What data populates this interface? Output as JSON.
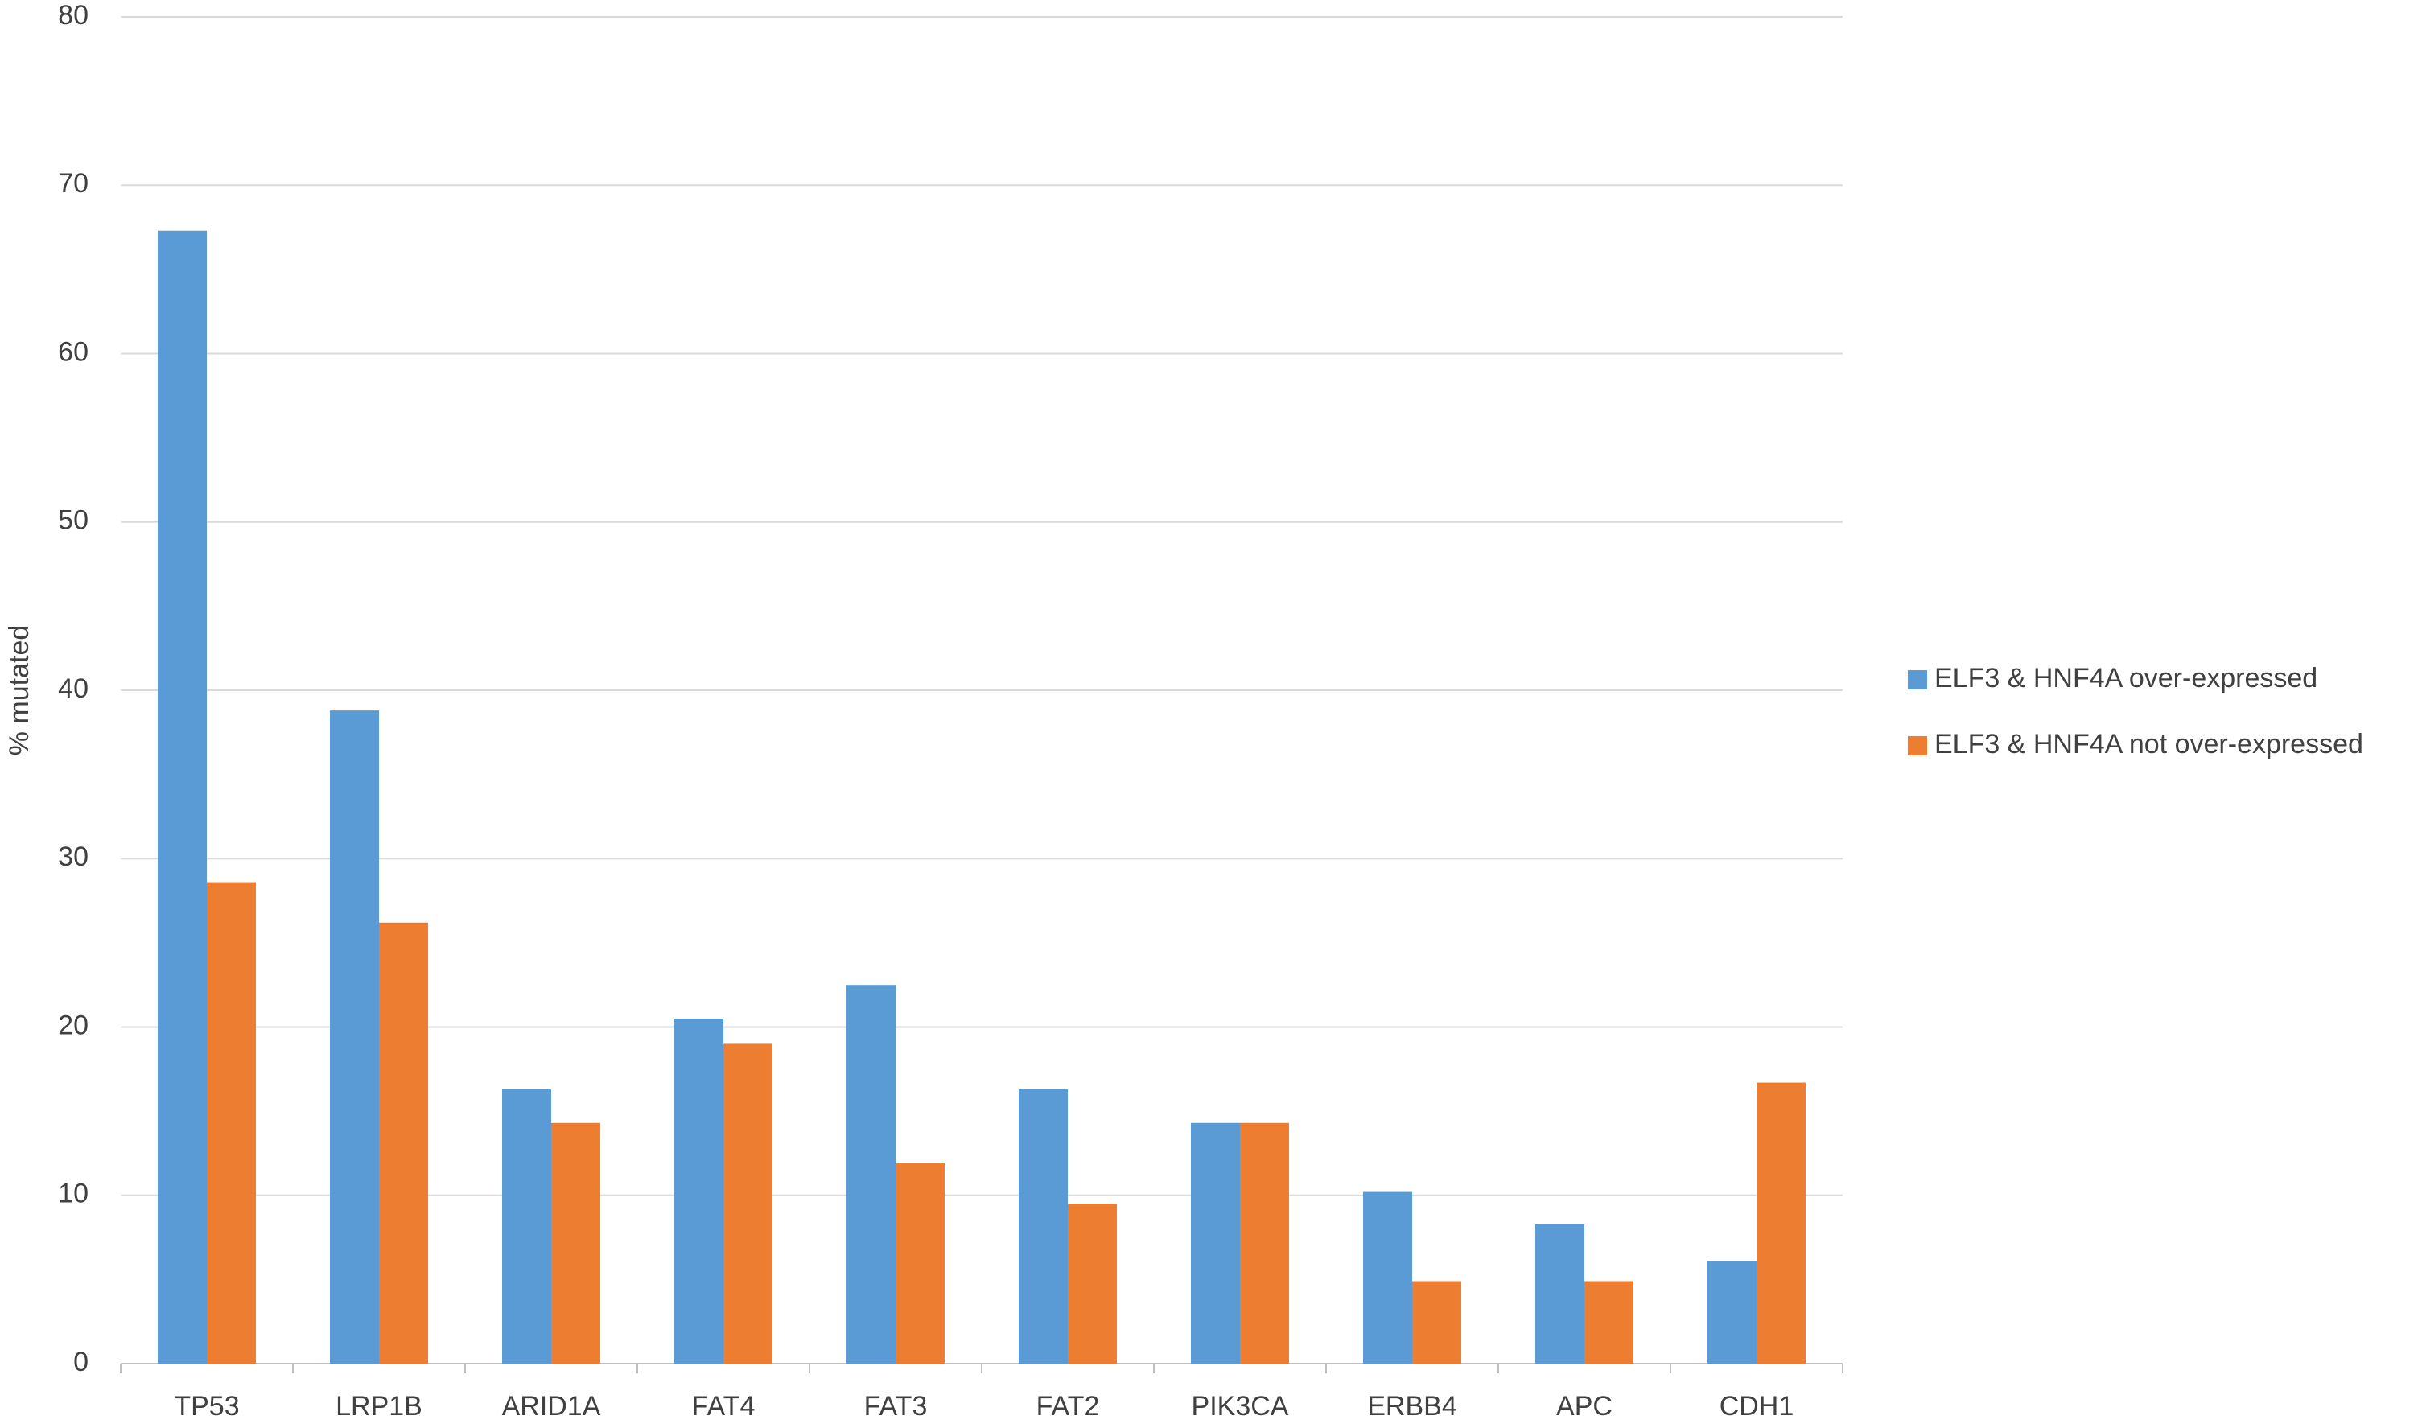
{
  "chart_data": {
    "type": "bar",
    "y_label": "% mutated",
    "categories": [
      "TP53",
      "LRP1B",
      "ARID1A",
      "FAT4",
      "FAT3",
      "FAT2",
      "PIK3CA",
      "ERBB4",
      "APC",
      "CDH1"
    ],
    "series": [
      {
        "name": "ELF3 & HNF4A over-expressed",
        "color": "#5b9bd5",
        "values": [
          67.3,
          38.8,
          16.3,
          20.5,
          22.5,
          16.3,
          14.3,
          10.2,
          8.3,
          6.1
        ]
      },
      {
        "name": "ELF3 & HNF4A not over-expressed",
        "color": "#ed7d31",
        "values": [
          28.6,
          26.2,
          14.3,
          19.0,
          11.9,
          9.5,
          14.3,
          4.9,
          4.9,
          16.7
        ]
      }
    ],
    "ylim": [
      0,
      80
    ],
    "yticks": [
      0,
      10,
      20,
      30,
      40,
      50,
      60,
      70,
      80
    ],
    "grid": true,
    "legend": "right"
  }
}
